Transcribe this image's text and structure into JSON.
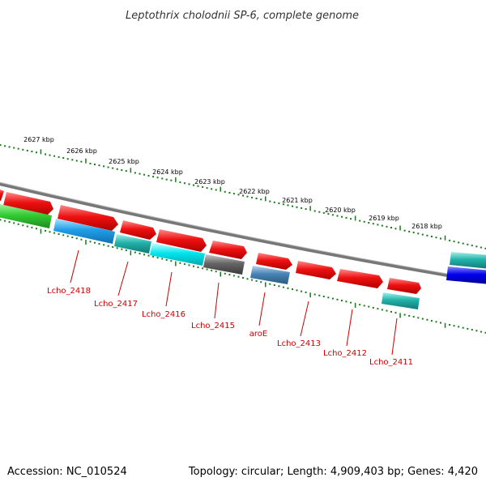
{
  "title": "Leptothrix cholodnii SP-6, complete genome",
  "footer": {
    "accession": "Accession: NC_010524",
    "summary": "Topology: circular; Length: 4,909,403 bp; Genes: 4,420"
  },
  "kbp_ticks": [
    "2627 kbp",
    "2626 kbp",
    "2625 kbp",
    "2624 kbp",
    "2623 kbp",
    "2622 kbp",
    "2621 kbp",
    "2620 kbp",
    "2619 kbp",
    "2618 kbp"
  ],
  "gene_labels": [
    "Lcho_2418",
    "Lcho_2417",
    "Lcho_2416",
    "Lcho_2415",
    "aroE",
    "Lcho_2413",
    "Lcho_2412",
    "Lcho_2411"
  ],
  "colors": {
    "cds": "#ee1111",
    "gene": "#1e90ff",
    "rna": "#33cc33",
    "teal": "#20b2aa",
    "cyan": "#00e5ee",
    "grey": "#666666",
    "steel": "#4682b4",
    "blue": "#0000ee",
    "backbone": "#777777",
    "ticks": "#1a7a1a",
    "label": "#cc0000"
  }
}
